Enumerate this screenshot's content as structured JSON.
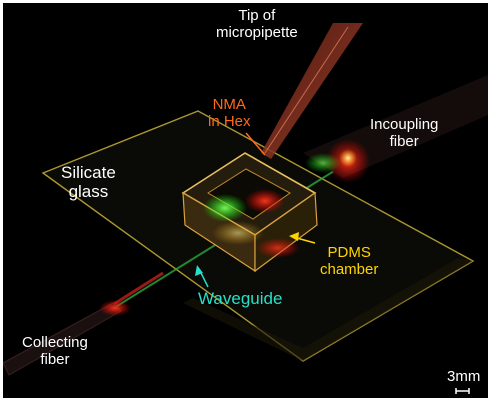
{
  "labels": {
    "tip": [
      "Tip of",
      "micropipette"
    ],
    "nma": [
      "NMA",
      "in Hex"
    ],
    "incoupling": [
      "Incoupling",
      "fiber"
    ],
    "silicate": [
      "Silicate",
      "glass"
    ],
    "pdms": [
      "PDMS",
      "chamber"
    ],
    "waveguide": "Waveguide",
    "collecting": [
      "Collecting",
      "fiber"
    ],
    "scale_bar": "3mm"
  },
  "colors": {
    "background": "#000000",
    "label_white": "#ffffff",
    "label_orange": "#ff6a1a",
    "label_yellow": "#ffd400",
    "label_cyan": "#26e0c8"
  }
}
